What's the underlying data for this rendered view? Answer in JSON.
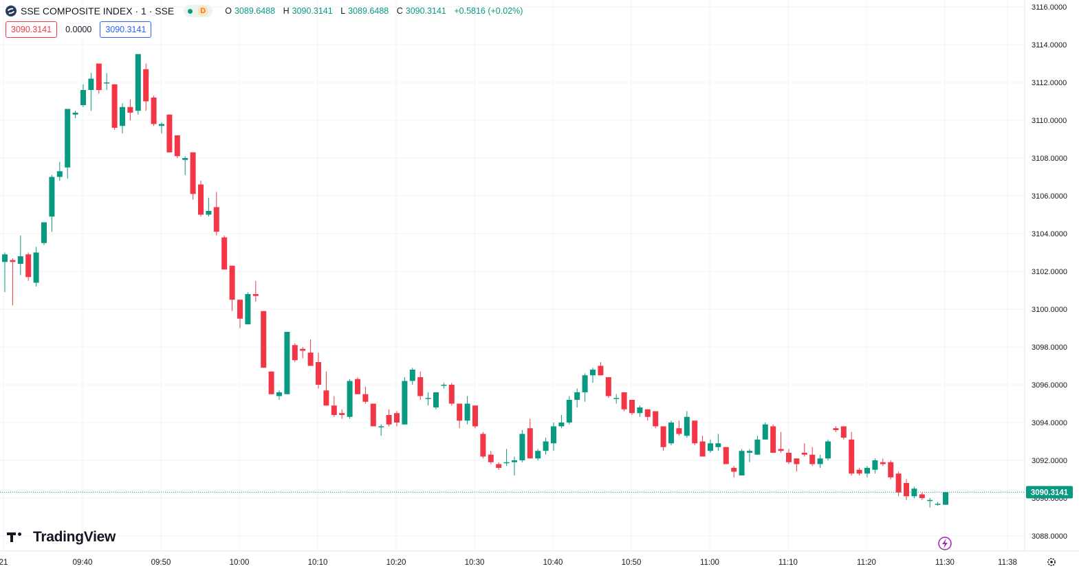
{
  "header": {
    "title": "SSE COMPOSITE INDEX · 1 · SSE",
    "status_letter": "D",
    "ohlc": {
      "o_label": "O",
      "o": "3089.6488",
      "h_label": "H",
      "h": "3090.3141",
      "l_label": "L",
      "l": "3089.6488",
      "c_label": "C",
      "c": "3090.3141",
      "change": "+0.5816 (+0.02%)"
    }
  },
  "pills": {
    "bid": "3090.3141",
    "spread": "0.0000",
    "ask": "3090.3141"
  },
  "brand": "TradingView",
  "colors": {
    "up": "#089981",
    "down": "#f23645",
    "grid": "#f0f3fa",
    "accent": "#2962ff",
    "lightning": "#9c27b0"
  },
  "icons": [
    "sse-logo-icon",
    "market-status-icon",
    "lightning-icon",
    "settings-gear-icon"
  ],
  "chart_data": {
    "type": "candlestick",
    "interval_minutes": 1,
    "last_price_label": "3090.3141",
    "ylim": [
      3087.5,
      3116.2
    ],
    "y_ticks": [
      "3088.0000",
      "3090.0000",
      "3092.0000",
      "3094.0000",
      "3096.0000",
      "3098.0000",
      "3100.0000",
      "3102.0000",
      "3104.0000",
      "3106.0000",
      "3108.0000",
      "3110.0000",
      "3112.0000",
      "3114.0000",
      "3116.0000"
    ],
    "x_ticks": [
      "21",
      "09:40",
      "09:50",
      "10:00",
      "10:10",
      "10:20",
      "10:30",
      "10:40",
      "10:50",
      "11:00",
      "11:10",
      "11:20",
      "11:30",
      "11:38"
    ],
    "candles": [
      {
        "t": "09:31",
        "o": 3102.5,
        "h": 3103.0,
        "l": 3100.9,
        "c": 3102.9
      },
      {
        "t": "09:32",
        "o": 3102.6,
        "h": 3102.7,
        "l": 3100.2,
        "c": 3102.5
      },
      {
        "t": "09:33",
        "o": 3102.4,
        "h": 3103.9,
        "l": 3101.8,
        "c": 3102.8
      },
      {
        "t": "09:34",
        "o": 3102.9,
        "h": 3103.0,
        "l": 3101.5,
        "c": 3101.7
      },
      {
        "t": "09:35",
        "o": 3101.4,
        "h": 3103.3,
        "l": 3101.2,
        "c": 3103.0
      },
      {
        "t": "09:36",
        "o": 3103.5,
        "h": 3104.6,
        "l": 3103.4,
        "c": 3104.6
      },
      {
        "t": "09:37",
        "o": 3104.9,
        "h": 3107.1,
        "l": 3104.1,
        "c": 3107.0
      },
      {
        "t": "09:38",
        "o": 3107.0,
        "h": 3107.8,
        "l": 3106.8,
        "c": 3107.3
      },
      {
        "t": "09:39",
        "o": 3107.5,
        "h": 3110.6,
        "l": 3106.9,
        "c": 3110.6
      },
      {
        "t": "09:40",
        "o": 3110.3,
        "h": 3110.5,
        "l": 3110.1,
        "c": 3110.4
      },
      {
        "t": "09:41",
        "o": 3110.8,
        "h": 3111.9,
        "l": 3110.7,
        "c": 3111.6
      },
      {
        "t": "09:42",
        "o": 3111.6,
        "h": 3112.5,
        "l": 3110.5,
        "c": 3112.2
      },
      {
        "t": "09:43",
        "o": 3113.0,
        "h": 3113.0,
        "l": 3111.4,
        "c": 3111.6
      },
      {
        "t": "09:44",
        "o": 3112.0,
        "h": 3112.5,
        "l": 3111.6,
        "c": 3112.0
      },
      {
        "t": "09:45",
        "o": 3111.9,
        "h": 3111.9,
        "l": 3109.5,
        "c": 3109.6
      },
      {
        "t": "09:46",
        "o": 3109.7,
        "h": 3110.9,
        "l": 3109.3,
        "c": 3110.7
      },
      {
        "t": "09:47",
        "o": 3110.7,
        "h": 3111.1,
        "l": 3110.0,
        "c": 3110.4
      },
      {
        "t": "09:48",
        "o": 3110.5,
        "h": 3113.5,
        "l": 3110.3,
        "c": 3113.5
      },
      {
        "t": "09:49",
        "o": 3112.7,
        "h": 3113.0,
        "l": 3110.5,
        "c": 3111.0
      },
      {
        "t": "09:50",
        "o": 3111.2,
        "h": 3111.3,
        "l": 3109.7,
        "c": 3109.8
      },
      {
        "t": "09:51",
        "o": 3109.7,
        "h": 3109.9,
        "l": 3109.3,
        "c": 3109.8
      },
      {
        "t": "09:52",
        "o": 3110.3,
        "h": 3110.3,
        "l": 3108.3,
        "c": 3108.3
      },
      {
        "t": "09:53",
        "o": 3109.2,
        "h": 3109.2,
        "l": 3108.0,
        "c": 3108.1
      },
      {
        "t": "09:54",
        "o": 3107.9,
        "h": 3108.1,
        "l": 3107.1,
        "c": 3108.0
      },
      {
        "t": "09:55",
        "o": 3108.3,
        "h": 3108.3,
        "l": 3105.8,
        "c": 3106.1
      },
      {
        "t": "09:56",
        "o": 3106.6,
        "h": 3106.8,
        "l": 3104.9,
        "c": 3105.0
      },
      {
        "t": "09:57",
        "o": 3105.0,
        "h": 3105.9,
        "l": 3104.9,
        "c": 3105.2
      },
      {
        "t": "09:58",
        "o": 3105.4,
        "h": 3106.2,
        "l": 3103.9,
        "c": 3104.1
      },
      {
        "t": "09:59",
        "o": 3103.8,
        "h": 3103.9,
        "l": 3102.1,
        "c": 3102.1
      },
      {
        "t": "10:00",
        "o": 3102.3,
        "h": 3102.3,
        "l": 3099.9,
        "c": 3100.5
      },
      {
        "t": "10:01",
        "o": 3100.5,
        "h": 3100.5,
        "l": 3099.0,
        "c": 3099.5
      },
      {
        "t": "10:02",
        "o": 3099.2,
        "h": 3100.9,
        "l": 3099.2,
        "c": 3100.8
      },
      {
        "t": "10:03",
        "o": 3100.8,
        "h": 3101.5,
        "l": 3100.4,
        "c": 3100.7
      },
      {
        "t": "10:04",
        "o": 3099.9,
        "h": 3099.9,
        "l": 3096.9,
        "c": 3096.9
      },
      {
        "t": "10:05",
        "o": 3096.7,
        "h": 3096.7,
        "l": 3095.5,
        "c": 3095.5
      },
      {
        "t": "10:06",
        "o": 3095.4,
        "h": 3095.7,
        "l": 3095.2,
        "c": 3095.6
      },
      {
        "t": "10:07",
        "o": 3095.5,
        "h": 3098.8,
        "l": 3095.5,
        "c": 3098.8
      },
      {
        "t": "10:08",
        "o": 3098.1,
        "h": 3098.2,
        "l": 3097.2,
        "c": 3097.3
      },
      {
        "t": "10:09",
        "o": 3097.9,
        "h": 3098.0,
        "l": 3097.4,
        "c": 3097.8
      },
      {
        "t": "10:10",
        "o": 3097.7,
        "h": 3098.4,
        "l": 3097.0,
        "c": 3097.0
      },
      {
        "t": "10:11",
        "o": 3097.2,
        "h": 3097.7,
        "l": 3095.8,
        "c": 3096.0
      },
      {
        "t": "10:12",
        "o": 3095.7,
        "h": 3096.7,
        "l": 3094.9,
        "c": 3094.9
      },
      {
        "t": "10:13",
        "o": 3094.9,
        "h": 3095.4,
        "l": 3094.3,
        "c": 3094.4
      },
      {
        "t": "10:14",
        "o": 3094.5,
        "h": 3094.7,
        "l": 3094.2,
        "c": 3094.4
      },
      {
        "t": "10:15",
        "o": 3094.3,
        "h": 3096.3,
        "l": 3094.2,
        "c": 3096.2
      },
      {
        "t": "10:16",
        "o": 3096.3,
        "h": 3096.4,
        "l": 3095.5,
        "c": 3095.5
      },
      {
        "t": "10:17",
        "o": 3095.5,
        "h": 3095.9,
        "l": 3095.0,
        "c": 3095.1
      },
      {
        "t": "10:18",
        "o": 3095.0,
        "h": 3095.0,
        "l": 3093.8,
        "c": 3093.8
      },
      {
        "t": "10:19",
        "o": 3093.8,
        "h": 3093.9,
        "l": 3093.3,
        "c": 3093.8
      },
      {
        "t": "10:20",
        "o": 3094.4,
        "h": 3094.7,
        "l": 3093.8,
        "c": 3093.9
      },
      {
        "t": "10:21",
        "o": 3094.5,
        "h": 3094.6,
        "l": 3093.8,
        "c": 3094.0
      },
      {
        "t": "10:22",
        "o": 3093.9,
        "h": 3096.4,
        "l": 3093.9,
        "c": 3096.2
      },
      {
        "t": "10:23",
        "o": 3096.2,
        "h": 3096.9,
        "l": 3096.0,
        "c": 3096.8
      },
      {
        "t": "10:24",
        "o": 3096.4,
        "h": 3096.7,
        "l": 3095.2,
        "c": 3095.4
      },
      {
        "t": "10:25",
        "o": 3095.3,
        "h": 3095.6,
        "l": 3094.9,
        "c": 3095.3
      },
      {
        "t": "10:26",
        "o": 3094.8,
        "h": 3095.6,
        "l": 3094.7,
        "c": 3095.6
      },
      {
        "t": "10:27",
        "o": 3096.0,
        "h": 3096.1,
        "l": 3095.8,
        "c": 3096.0
      },
      {
        "t": "10:28",
        "o": 3096.0,
        "h": 3096.1,
        "l": 3094.9,
        "c": 3095.0
      },
      {
        "t": "10:29",
        "o": 3095.0,
        "h": 3095.0,
        "l": 3093.7,
        "c": 3094.1
      },
      {
        "t": "10:30",
        "o": 3094.1,
        "h": 3095.4,
        "l": 3093.9,
        "c": 3095.0
      },
      {
        "t": "10:31",
        "o": 3094.9,
        "h": 3094.9,
        "l": 3093.7,
        "c": 3093.8
      },
      {
        "t": "10:32",
        "o": 3093.4,
        "h": 3093.5,
        "l": 3092.1,
        "c": 3092.2
      },
      {
        "t": "10:33",
        "o": 3092.3,
        "h": 3092.5,
        "l": 3091.8,
        "c": 3091.9
      },
      {
        "t": "10:34",
        "o": 3091.8,
        "h": 3091.9,
        "l": 3091.5,
        "c": 3091.6
      },
      {
        "t": "10:35",
        "o": 3091.9,
        "h": 3092.6,
        "l": 3091.7,
        "c": 3091.9
      },
      {
        "t": "10:36",
        "o": 3091.9,
        "h": 3092.2,
        "l": 3091.2,
        "c": 3092.0
      },
      {
        "t": "10:37",
        "o": 3092.0,
        "h": 3093.6,
        "l": 3091.9,
        "c": 3093.4
      },
      {
        "t": "10:38",
        "o": 3093.7,
        "h": 3094.2,
        "l": 3092.1,
        "c": 3092.1
      },
      {
        "t": "10:39",
        "o": 3092.1,
        "h": 3092.6,
        "l": 3092.0,
        "c": 3092.5
      },
      {
        "t": "10:40",
        "o": 3092.5,
        "h": 3093.2,
        "l": 3092.3,
        "c": 3093.0
      },
      {
        "t": "10:41",
        "o": 3092.9,
        "h": 3094.0,
        "l": 3092.5,
        "c": 3093.8
      },
      {
        "t": "10:42",
        "o": 3093.8,
        "h": 3094.4,
        "l": 3093.7,
        "c": 3094.0
      },
      {
        "t": "10:43",
        "o": 3094.0,
        "h": 3095.4,
        "l": 3093.9,
        "c": 3095.2
      },
      {
        "t": "10:44",
        "o": 3095.2,
        "h": 3095.8,
        "l": 3094.8,
        "c": 3095.6
      },
      {
        "t": "10:45",
        "o": 3095.6,
        "h": 3096.6,
        "l": 3095.1,
        "c": 3096.5
      },
      {
        "t": "10:46",
        "o": 3096.5,
        "h": 3096.9,
        "l": 3096.1,
        "c": 3096.8
      },
      {
        "t": "10:47",
        "o": 3097.0,
        "h": 3097.2,
        "l": 3096.5,
        "c": 3096.5
      },
      {
        "t": "10:48",
        "o": 3096.4,
        "h": 3096.4,
        "l": 3095.3,
        "c": 3095.4
      },
      {
        "t": "10:49",
        "o": 3095.3,
        "h": 3095.5,
        "l": 3095.0,
        "c": 3095.3
      },
      {
        "t": "10:50",
        "o": 3095.6,
        "h": 3095.6,
        "l": 3094.6,
        "c": 3094.7
      },
      {
        "t": "10:51",
        "o": 3095.2,
        "h": 3095.2,
        "l": 3094.4,
        "c": 3094.5
      },
      {
        "t": "10:52",
        "o": 3094.5,
        "h": 3094.9,
        "l": 3094.3,
        "c": 3094.8
      },
      {
        "t": "10:53",
        "o": 3094.7,
        "h": 3094.7,
        "l": 3094.1,
        "c": 3094.3
      },
      {
        "t": "10:54",
        "o": 3094.6,
        "h": 3094.6,
        "l": 3093.7,
        "c": 3093.8
      },
      {
        "t": "10:55",
        "o": 3093.8,
        "h": 3093.8,
        "l": 3092.5,
        "c": 3092.7
      },
      {
        "t": "10:56",
        "o": 3092.9,
        "h": 3094.1,
        "l": 3092.8,
        "c": 3094.0
      },
      {
        "t": "10:57",
        "o": 3093.7,
        "h": 3094.1,
        "l": 3093.3,
        "c": 3093.4
      },
      {
        "t": "10:58",
        "o": 3093.3,
        "h": 3094.6,
        "l": 3093.2,
        "c": 3094.3
      },
      {
        "t": "10:59",
        "o": 3094.1,
        "h": 3094.1,
        "l": 3092.8,
        "c": 3092.9
      },
      {
        "t": "11:00",
        "o": 3093.0,
        "h": 3093.3,
        "l": 3092.2,
        "c": 3092.2
      },
      {
        "t": "11:01",
        "o": 3092.5,
        "h": 3093.1,
        "l": 3092.4,
        "c": 3092.9
      },
      {
        "t": "11:02",
        "o": 3092.7,
        "h": 3093.4,
        "l": 3092.5,
        "c": 3092.9
      },
      {
        "t": "11:03",
        "o": 3092.7,
        "h": 3092.7,
        "l": 3091.8,
        "c": 3091.8
      },
      {
        "t": "11:04",
        "o": 3091.6,
        "h": 3091.7,
        "l": 3091.1,
        "c": 3091.4
      },
      {
        "t": "11:05",
        "o": 3091.2,
        "h": 3092.6,
        "l": 3091.2,
        "c": 3092.5
      },
      {
        "t": "11:06",
        "o": 3092.4,
        "h": 3092.6,
        "l": 3091.9,
        "c": 3092.5
      },
      {
        "t": "11:07",
        "o": 3092.3,
        "h": 3093.3,
        "l": 3092.3,
        "c": 3093.1
      },
      {
        "t": "11:08",
        "o": 3093.1,
        "h": 3094.0,
        "l": 3093.1,
        "c": 3093.9
      },
      {
        "t": "11:09",
        "o": 3093.8,
        "h": 3093.9,
        "l": 3092.4,
        "c": 3092.4
      },
      {
        "t": "11:10",
        "o": 3092.6,
        "h": 3093.5,
        "l": 3092.4,
        "c": 3092.5
      },
      {
        "t": "11:11",
        "o": 3092.4,
        "h": 3092.6,
        "l": 3091.8,
        "c": 3091.9
      },
      {
        "t": "11:12",
        "o": 3092.1,
        "h": 3092.1,
        "l": 3091.4,
        "c": 3091.8
      },
      {
        "t": "11:13",
        "o": 3092.4,
        "h": 3092.9,
        "l": 3092.2,
        "c": 3092.3
      },
      {
        "t": "11:14",
        "o": 3092.3,
        "h": 3092.7,
        "l": 3091.7,
        "c": 3091.8
      },
      {
        "t": "11:15",
        "o": 3091.8,
        "h": 3092.3,
        "l": 3091.6,
        "c": 3092.1
      },
      {
        "t": "11:16",
        "o": 3092.1,
        "h": 3093.1,
        "l": 3092.0,
        "c": 3093.0
      },
      {
        "t": "11:17",
        "o": 3093.7,
        "h": 3093.8,
        "l": 3093.5,
        "c": 3093.6
      },
      {
        "t": "11:18",
        "o": 3093.8,
        "h": 3093.8,
        "l": 3093.1,
        "c": 3093.2
      },
      {
        "t": "11:19",
        "o": 3093.1,
        "h": 3093.5,
        "l": 3091.2,
        "c": 3091.3
      },
      {
        "t": "11:20",
        "o": 3091.5,
        "h": 3091.6,
        "l": 3091.2,
        "c": 3091.3
      },
      {
        "t": "11:21",
        "o": 3091.3,
        "h": 3091.7,
        "l": 3091.1,
        "c": 3091.6
      },
      {
        "t": "11:22",
        "o": 3091.5,
        "h": 3092.1,
        "l": 3091.3,
        "c": 3092.0
      },
      {
        "t": "11:23",
        "o": 3091.9,
        "h": 3092.1,
        "l": 3091.7,
        "c": 3091.8
      },
      {
        "t": "11:24",
        "o": 3091.9,
        "h": 3092.0,
        "l": 3091.0,
        "c": 3091.1
      },
      {
        "t": "11:25",
        "o": 3091.3,
        "h": 3091.4,
        "l": 3090.1,
        "c": 3090.3
      },
      {
        "t": "11:26",
        "o": 3090.8,
        "h": 3091.0,
        "l": 3089.9,
        "c": 3090.1
      },
      {
        "t": "11:27",
        "o": 3090.1,
        "h": 3090.6,
        "l": 3090.0,
        "c": 3090.5
      },
      {
        "t": "11:28",
        "o": 3090.2,
        "h": 3090.3,
        "l": 3089.9,
        "c": 3090.0
      },
      {
        "t": "11:29",
        "o": 3089.9,
        "h": 3090.0,
        "l": 3089.5,
        "c": 3089.9
      },
      {
        "t": "11:30",
        "o": 3089.7,
        "h": 3089.8,
        "l": 3089.6,
        "c": 3089.7
      },
      {
        "t": "11:31",
        "o": 3089.6488,
        "h": 3090.3141,
        "l": 3089.6488,
        "c": 3090.3141
      }
    ]
  }
}
